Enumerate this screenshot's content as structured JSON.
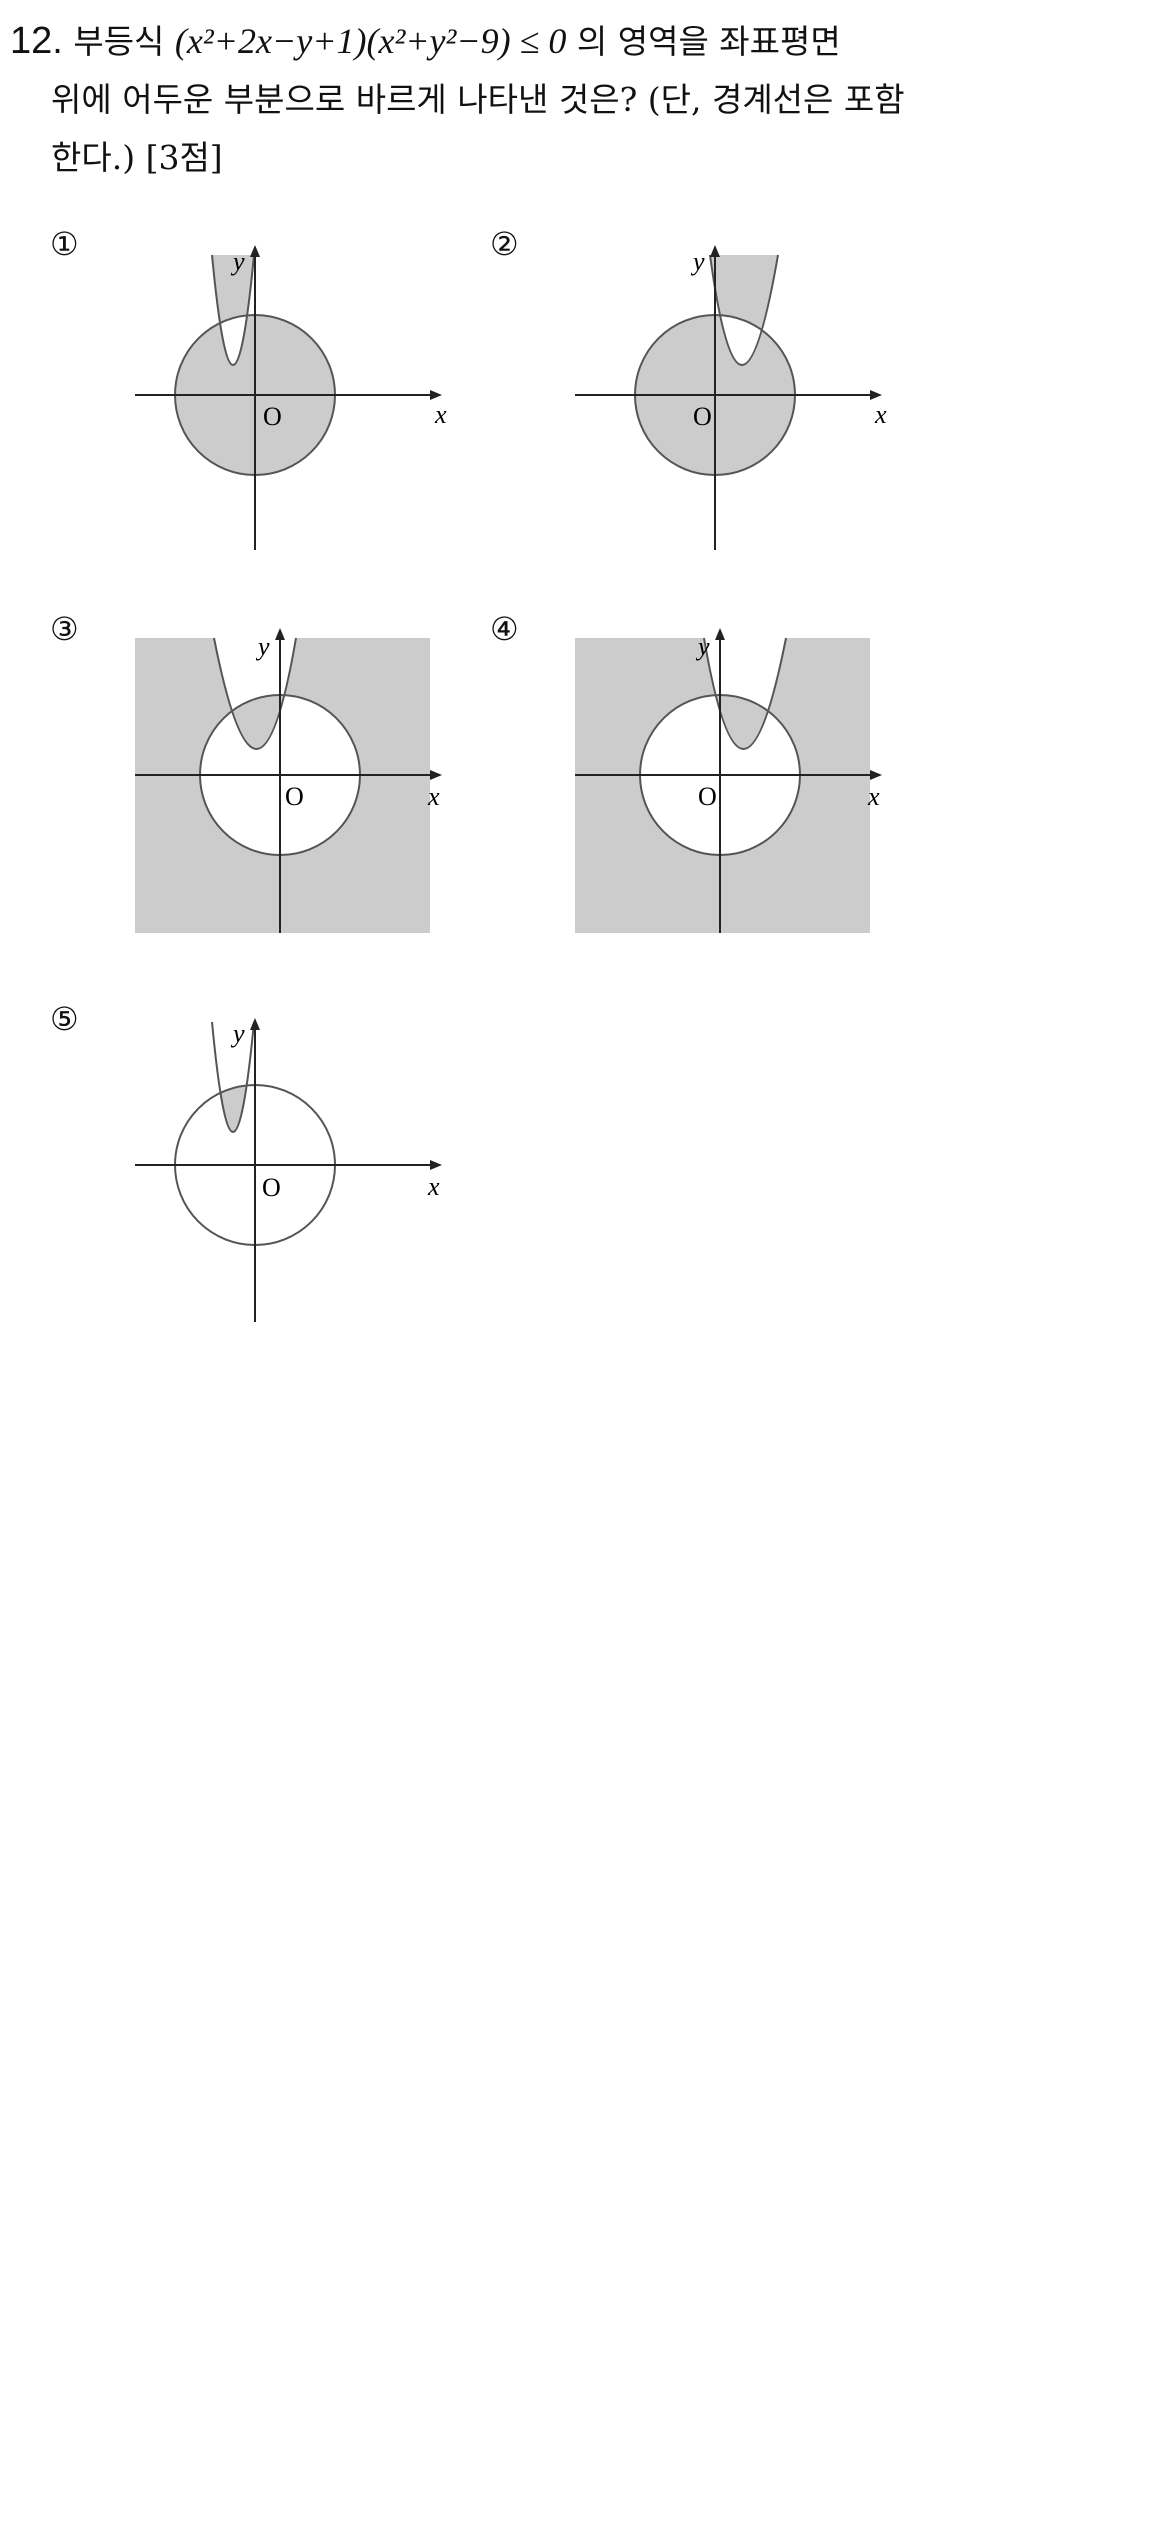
{
  "question": {
    "number": "12.",
    "line1_text": "부등식",
    "inequality": "(x²+2x−y+1)(x²+y²−9) ≤ 0",
    "line1_rest": "의 영역을 좌표평면",
    "line2": "위에 어두운 부분으로 바르게 나타낸 것은? (단, 경계선은 포함",
    "line3": "한다.) [3점]"
  },
  "options": [
    {
      "label": "①",
      "x_label": "x",
      "y_label": "y",
      "origin_label": "O"
    },
    {
      "label": "②",
      "x_label": "x",
      "y_label": "y",
      "origin_label": "O"
    },
    {
      "label": "③",
      "x_label": "x",
      "y_label": "y",
      "origin_label": "O"
    },
    {
      "label": "④",
      "x_label": "x",
      "y_label": "y",
      "origin_label": "O"
    },
    {
      "label": "⑤",
      "x_label": "x",
      "y_label": "y",
      "origin_label": "O"
    }
  ],
  "colors": {
    "shade": "#cccccc",
    "line": "#555555",
    "axis": "#222222"
  }
}
